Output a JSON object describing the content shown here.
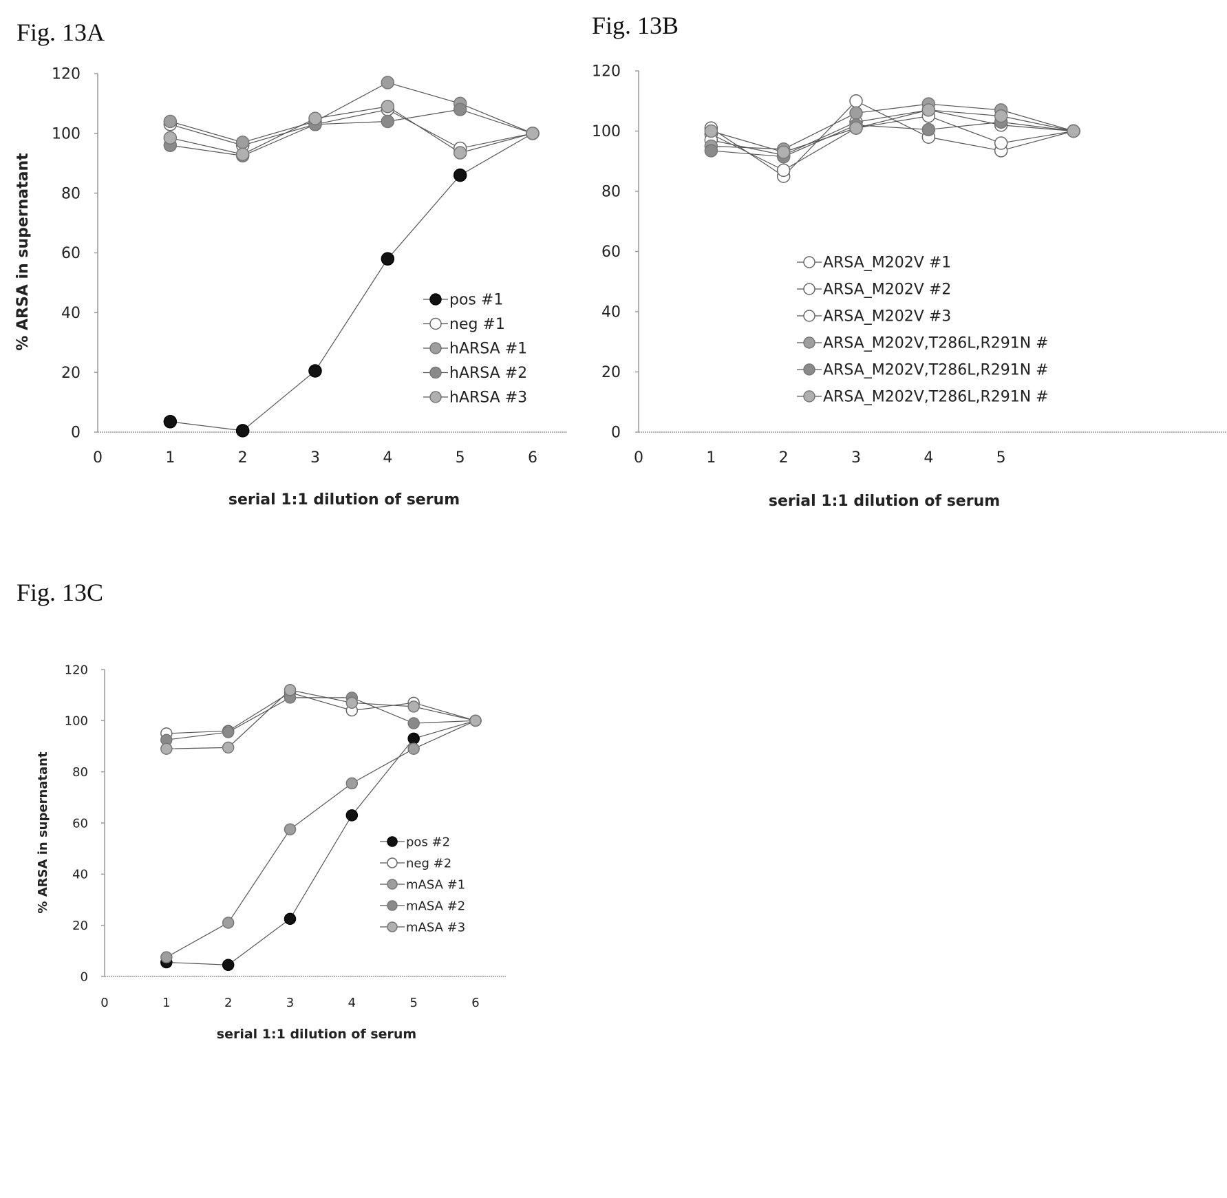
{
  "figure_labels": {
    "a": "Fig. 13A",
    "b": "Fig. 13B",
    "c": "Fig. 13C"
  },
  "colors": {
    "black": "#111111",
    "white": "#ffffff",
    "gray": "#9e9e9e",
    "gray_dark": "#8a8a8a",
    "gray_light": "#b0b0b0",
    "line": "#555555",
    "axis": "#999999"
  },
  "chart_data": [
    {
      "type": "line",
      "panel": "Fig. 13A",
      "xlabel": "serial 1:1 dilution of serum",
      "ylabel": "% ARSA in supernatant",
      "xlim": [
        0,
        6
      ],
      "ylim": [
        0,
        120
      ],
      "xticks": [
        "0",
        "1",
        "2",
        "3",
        "4",
        "5",
        "6"
      ],
      "yticks": [
        "0",
        "20",
        "40",
        "60",
        "80",
        "100",
        "120"
      ],
      "legend_position": "right-middle",
      "x": [
        1,
        2,
        3,
        4,
        5,
        6
      ],
      "series": [
        {
          "name": "pos #1",
          "marker": "black",
          "values": [
            3.5,
            0.5,
            20.5,
            58,
            86,
            100
          ]
        },
        {
          "name": "neg #1",
          "marker": "white",
          "values": [
            103,
            96,
            103,
            108,
            95,
            100
          ]
        },
        {
          "name": "hARSA #1",
          "marker": "gray",
          "values": [
            104,
            97,
            104,
            117,
            110,
            100
          ]
        },
        {
          "name": "hARSA #2",
          "marker": "gray_dark",
          "values": [
            96,
            92.5,
            103,
            104,
            108,
            100
          ]
        },
        {
          "name": "hARSA #3",
          "marker": "gray_light",
          "values": [
            98.5,
            93,
            105,
            109,
            93.5,
            100
          ]
        }
      ]
    },
    {
      "type": "line",
      "panel": "Fig. 13B",
      "xlabel": "serial 1:1 dilution of serum",
      "ylabel": "",
      "xlim": [
        0,
        6
      ],
      "ylim": [
        0,
        120
      ],
      "xticks": [
        "0",
        "1",
        "2",
        "3",
        "4",
        "5"
      ],
      "yticks": [
        "0",
        "20",
        "40",
        "60",
        "80",
        "100",
        "120"
      ],
      "legend_position": "right-middle",
      "x": [
        1,
        2,
        3,
        4,
        5,
        6
      ],
      "series": [
        {
          "name": "ARSA_M202V #1",
          "marker": "white",
          "values": [
            101,
            85,
            110,
            98,
            93.5,
            100
          ]
        },
        {
          "name": "ARSA_M202V #2",
          "marker": "white",
          "values": [
            99,
            87,
            101,
            105,
            96,
            100
          ]
        },
        {
          "name": "ARSA_M202V #3",
          "marker": "white",
          "values": [
            97,
            92,
            103,
            107,
            102,
            100
          ]
        },
        {
          "name": "ARSA_M202V,T286L,R291N #",
          "marker": "gray",
          "values": [
            95,
            94,
            106,
            109,
            107,
            100
          ]
        },
        {
          "name": "ARSA_M202V,T286L,R291N #",
          "marker": "gray_dark",
          "values": [
            93.5,
            91.5,
            102,
            100.5,
            103,
            100
          ]
        },
        {
          "name": "ARSA_M202V,T286L,R291N #",
          "marker": "gray_light",
          "values": [
            100,
            93,
            101,
            107,
            105,
            100
          ]
        }
      ]
    },
    {
      "type": "line",
      "panel": "Fig. 13C",
      "xlabel": "serial 1:1 dilution of serum",
      "ylabel": "% ARSA in supernatant",
      "xlim": [
        0,
        6
      ],
      "ylim": [
        0,
        120
      ],
      "xticks": [
        "0",
        "1",
        "2",
        "3",
        "4",
        "5",
        "6"
      ],
      "yticks": [
        "0",
        "20",
        "40",
        "60",
        "80",
        "100",
        "120"
      ],
      "legend_position": "right-middle",
      "x": [
        1,
        2,
        3,
        4,
        5,
        6
      ],
      "series": [
        {
          "name": "pos #2",
          "marker": "black",
          "values": [
            5.5,
            4.5,
            22.5,
            63,
            93,
            100
          ]
        },
        {
          "name": "neg #2",
          "marker": "white",
          "values": [
            95,
            96,
            111,
            104,
            107,
            100
          ]
        },
        {
          "name": "mASA #1",
          "marker": "gray",
          "values": [
            7.5,
            21,
            57.5,
            75.5,
            89,
            100
          ]
        },
        {
          "name": "mASA #2",
          "marker": "gray_dark",
          "values": [
            92.5,
            95.5,
            109,
            109,
            99,
            100
          ]
        },
        {
          "name": "mASA #3",
          "marker": "gray_light",
          "values": [
            89,
            89.5,
            112,
            107,
            105.5,
            100
          ]
        }
      ]
    }
  ]
}
